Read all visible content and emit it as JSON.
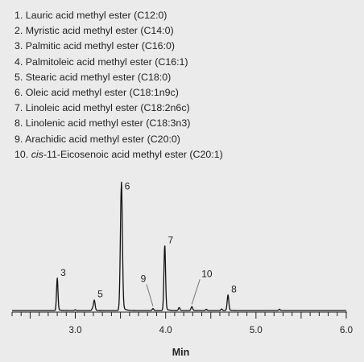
{
  "legend": [
    {
      "num": "1.",
      "italic": "",
      "name": "Lauric acid methyl ester (C12:0)"
    },
    {
      "num": "2.",
      "italic": "",
      "name": "Myristic acid methyl ester (C14:0)"
    },
    {
      "num": "3.",
      "italic": "",
      "name": "Palmitic acid methyl ester (C16:0)"
    },
    {
      "num": "4.",
      "italic": "",
      "name": "Palmitoleic acid methyl ester (C16:1)"
    },
    {
      "num": "5.",
      "italic": "",
      "name": "Stearic acid methyl ester (C18:0)"
    },
    {
      "num": "6.",
      "italic": "",
      "name": "Oleic acid methyl ester (C18:1n9c)"
    },
    {
      "num": "7.",
      "italic": "",
      "name": "Linoleic acid methyl ester (C18:2n6c)"
    },
    {
      "num": "8.",
      "italic": "",
      "name": "Linolenic acid methyl ester (C18:3n3)"
    },
    {
      "num": "9.",
      "italic": "",
      "name": "Arachidic acid methyl ester (C20:0)"
    },
    {
      "num": "10.",
      "italic": "cis",
      "name": "-11-Eicosenoic acid methyl ester (C20:1)"
    }
  ],
  "chart_data": {
    "type": "line",
    "xlabel": "Min",
    "ylabel": "",
    "xlim": [
      2.3,
      6.0
    ],
    "ylim": [
      0,
      100
    ],
    "x_ticks": [
      "3.0",
      "4.0",
      "5.0",
      "6.0"
    ],
    "x_tick_values": [
      3.0,
      4.0,
      5.0,
      6.0
    ],
    "baseline": 1.5,
    "peaks": [
      {
        "label": "3",
        "rt": 2.8,
        "height": 25,
        "width": 0.008
      },
      {
        "label": "5",
        "rt": 3.21,
        "height": 8,
        "width": 0.009
      },
      {
        "label": "6",
        "rt": 3.51,
        "height": 99,
        "width": 0.011
      },
      {
        "label": "9",
        "rt": 3.86,
        "height": 1.5,
        "width": 0.008
      },
      {
        "label": "7",
        "rt": 3.99,
        "height": 51,
        "width": 0.009
      },
      {
        "label": "10",
        "rt": 4.29,
        "height": 3,
        "width": 0.009
      },
      {
        "label": "8",
        "rt": 4.69,
        "height": 12,
        "width": 0.009
      }
    ],
    "minor_peaks": [
      {
        "rt": 3.0,
        "height": 0.6
      },
      {
        "rt": 3.19,
        "height": 1.4
      },
      {
        "rt": 4.15,
        "height": 2.4
      },
      {
        "rt": 4.45,
        "height": 1.0
      },
      {
        "rt": 4.62,
        "height": 1.2
      },
      {
        "rt": 5.26,
        "height": 1.0
      }
    ]
  }
}
